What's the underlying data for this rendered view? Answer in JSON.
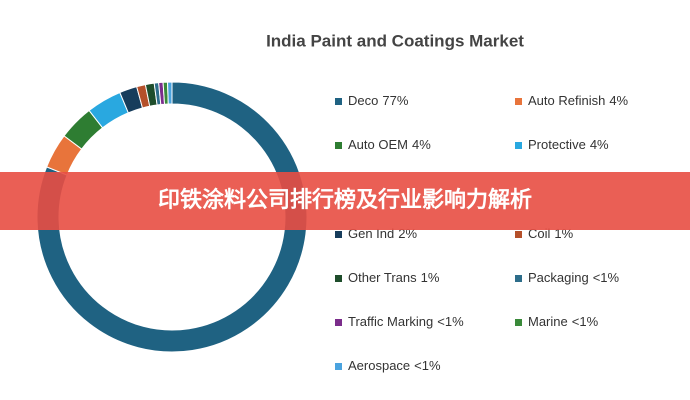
{
  "chart_data": {
    "type": "donut",
    "title": "India Paint and Coatings Market",
    "categories": [
      "Deco",
      "Auto Refinish",
      "Auto OEM",
      "Protective",
      "Gen Ind",
      "Coil",
      "Other Trans",
      "Packaging",
      "Traffic Marking",
      "Marine",
      "Aerospace"
    ],
    "values": [
      77,
      4,
      4,
      4,
      2,
      1,
      1,
      0.5,
      0.5,
      0.5,
      0.5
    ],
    "value_labels": [
      "77%",
      "4%",
      "4%",
      "4%",
      "2%",
      "1%",
      "1%",
      "<1%",
      "<1%",
      "<1%",
      "<1%"
    ],
    "colors": [
      "#1f6282",
      "#e8743b",
      "#2e7d32",
      "#29a8e0",
      "#173d5c",
      "#b5502a",
      "#1e4d2b",
      "#2d6d8a",
      "#7b2d8b",
      "#3a8a3a",
      "#4aa3df"
    ]
  },
  "banner": "印铁涂料公司排行榜及行业影响力解析"
}
